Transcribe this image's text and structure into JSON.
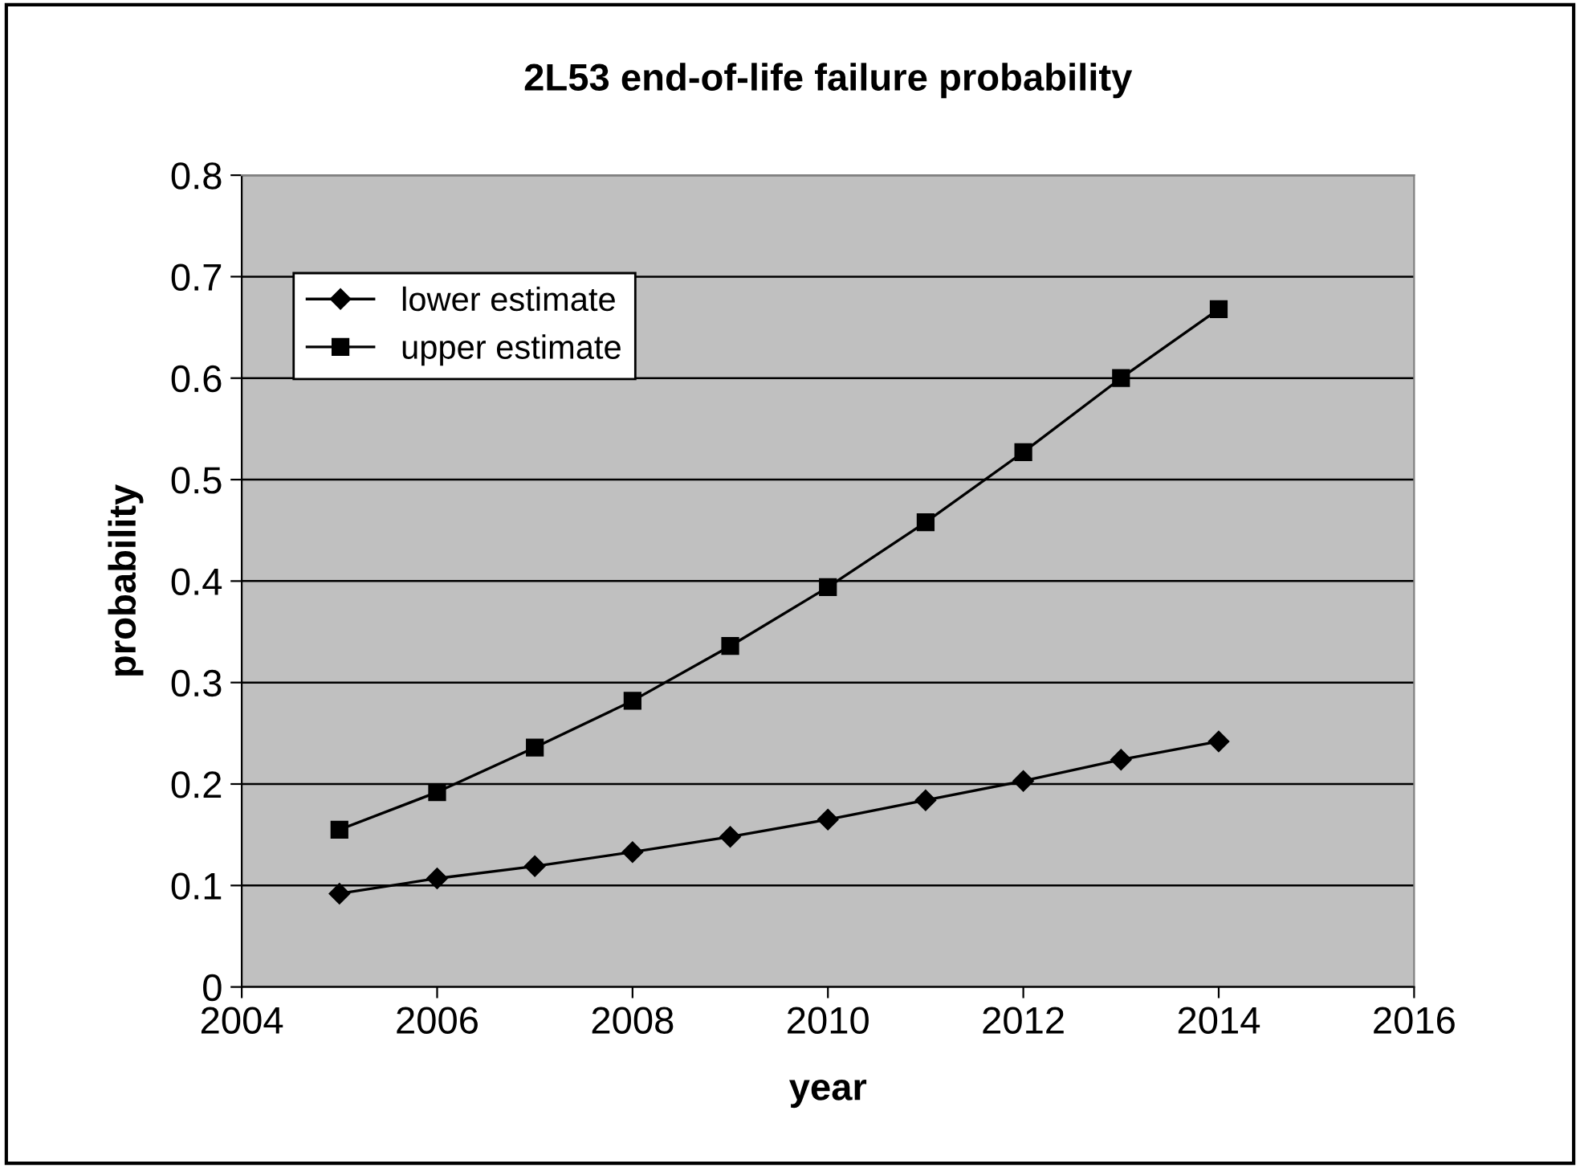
{
  "chart_data": {
    "type": "line",
    "title": "2L53 end-of-life failure probability",
    "xlabel": "year",
    "ylabel": "probability",
    "x": [
      2005,
      2006,
      2007,
      2008,
      2009,
      2010,
      2011,
      2012,
      2013,
      2014
    ],
    "series": [
      {
        "name": "lower estimate",
        "color": "#000000",
        "marker": "diamond",
        "values": [
          0.092,
          0.107,
          0.119,
          0.133,
          0.148,
          0.165,
          0.184,
          0.203,
          0.224,
          0.242
        ]
      },
      {
        "name": "upper estimate",
        "color": "#000000",
        "marker": "square",
        "values": [
          0.155,
          0.192,
          0.236,
          0.282,
          0.336,
          0.394,
          0.458,
          0.527,
          0.6,
          0.668
        ]
      }
    ],
    "xlim": [
      2004,
      2016
    ],
    "xticks": [
      2004,
      2006,
      2008,
      2010,
      2012,
      2014,
      2016
    ],
    "ylim": [
      0,
      0.8
    ],
    "yticks": [
      0,
      0.1,
      0.2,
      0.3,
      0.4,
      0.5,
      0.6,
      0.7,
      0.8
    ],
    "grid": "y",
    "legend": "top left",
    "line_style": "solid"
  }
}
